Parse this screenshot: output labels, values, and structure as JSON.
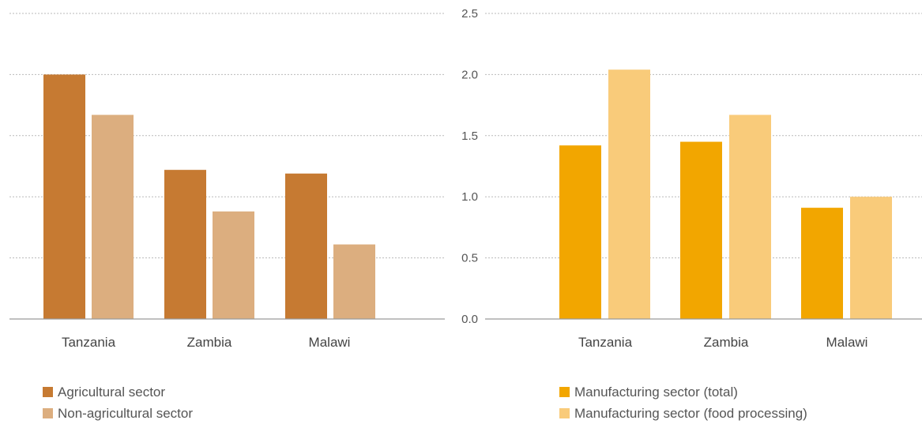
{
  "chart_data": [
    {
      "type": "bar",
      "categories": [
        "Tanzania",
        "Zambia",
        "Malawi"
      ],
      "series": [
        {
          "name": "Agricultural sector",
          "values": [
            2.0,
            1.22,
            1.19
          ],
          "color": "#C67A32"
        },
        {
          "name": "Non-agricultural sector",
          "values": [
            1.67,
            0.88,
            0.61
          ],
          "color": "#DCAE7F"
        }
      ],
      "ylim": [
        0,
        2.5
      ],
      "grid": true,
      "legend_position": "bottom-left"
    },
    {
      "type": "bar",
      "categories": [
        "Tanzania",
        "Zambia",
        "Malawi"
      ],
      "series": [
        {
          "name": "Manufacturing sector (total)",
          "values": [
            1.42,
            1.45,
            0.91
          ],
          "color": "#F2A600"
        },
        {
          "name": "Manufacturing sector (food processing)",
          "values": [
            2.04,
            1.67,
            1.0
          ],
          "color": "#F9CB7A"
        }
      ],
      "yticks": [
        "0.0",
        "0.5",
        "1.0",
        "1.5",
        "2.0",
        "2.5"
      ],
      "ylim": [
        0,
        2.5
      ],
      "grid": true,
      "legend_position": "bottom-right"
    }
  ]
}
